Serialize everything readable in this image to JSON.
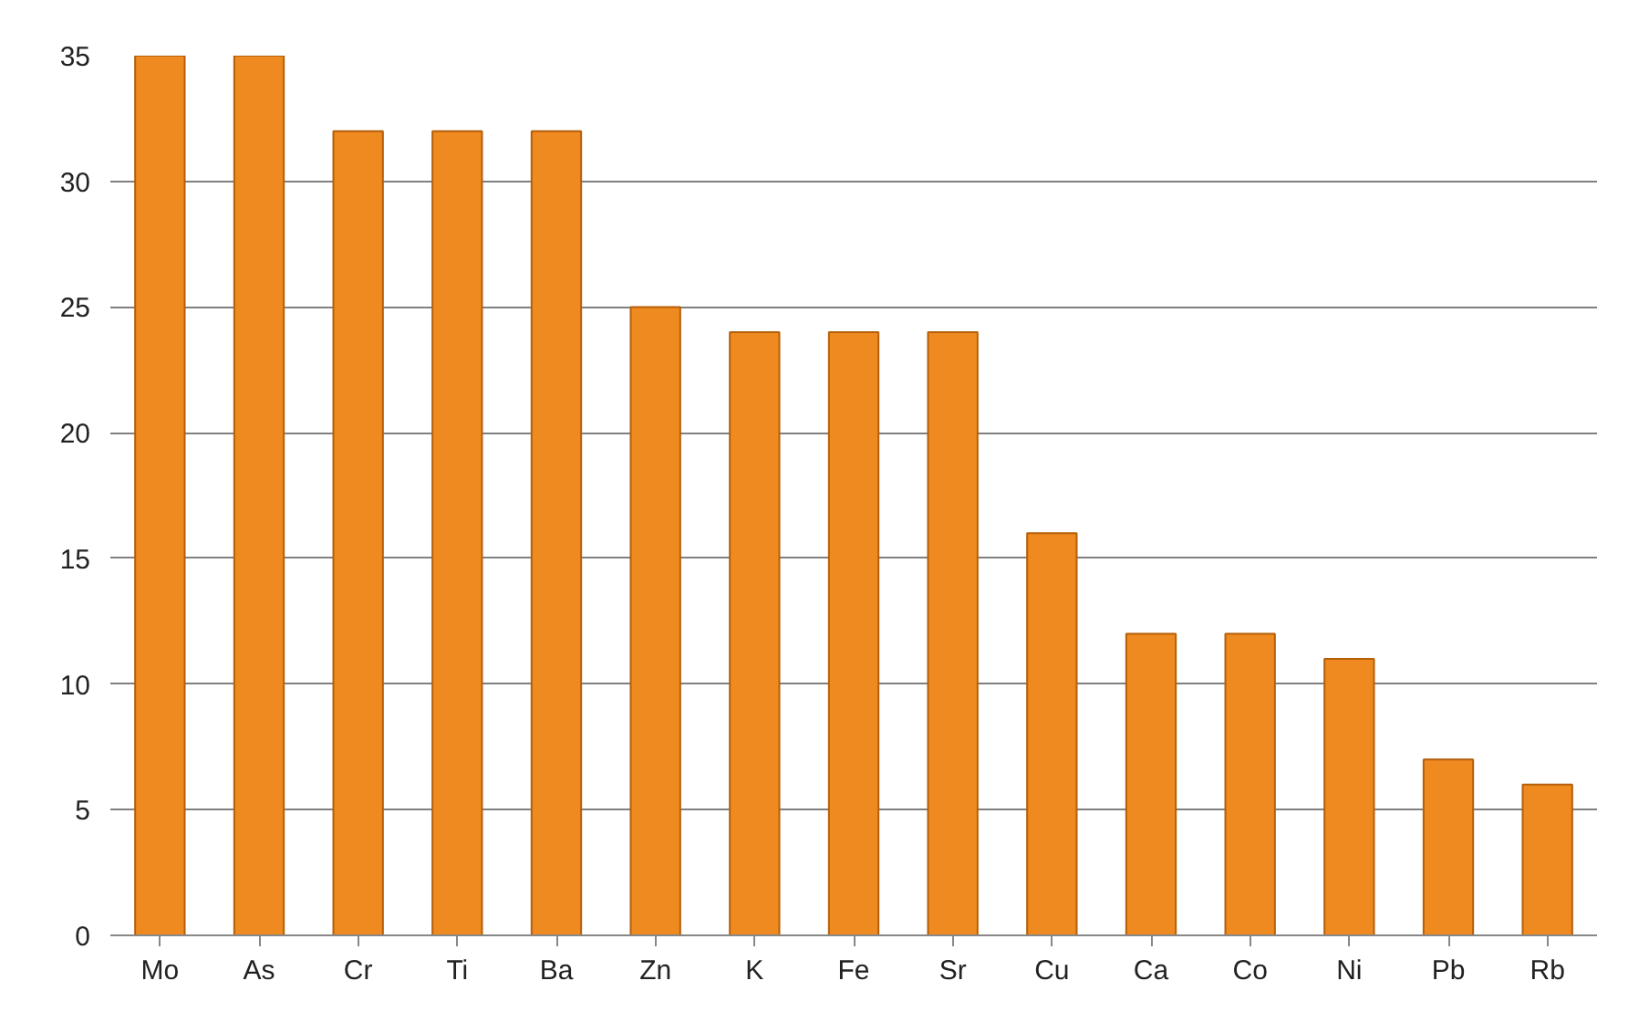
{
  "chart_data": {
    "type": "bar",
    "categories": [
      "Mo",
      "As",
      "Cr",
      "Ti",
      "Ba",
      "Zn",
      "K",
      "Fe",
      "Sr",
      "Cu",
      "Ca",
      "Co",
      "Ni",
      "Pb",
      "Rb"
    ],
    "values": [
      35,
      35,
      32,
      32,
      32,
      25,
      24,
      24,
      24,
      16,
      12,
      12,
      11,
      7,
      6
    ],
    "color": "#ee8a1f",
    "ylim": [
      0,
      35
    ],
    "yticks": [
      0,
      5,
      10,
      15,
      20,
      25,
      30,
      35
    ],
    "grid": "y"
  }
}
